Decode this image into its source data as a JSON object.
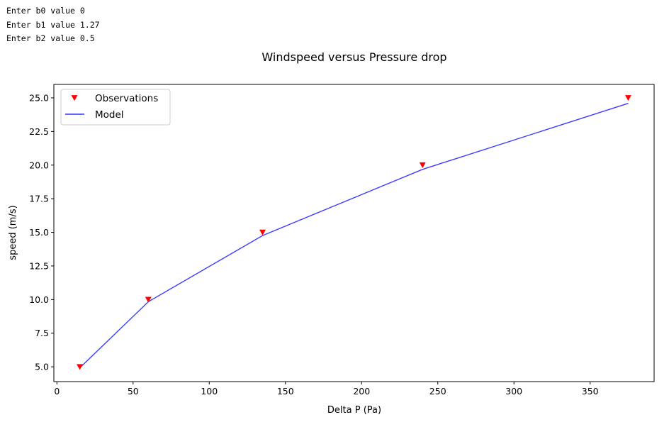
{
  "console": {
    "lines": [
      "Enter b0 value 0",
      "Enter b1 value 1.27",
      "Enter b2 value 0.5"
    ]
  },
  "colors": {
    "observations": "#ff0000",
    "model": "#3333ff",
    "axes": "#000000",
    "legend_border": "#cccccc"
  },
  "chart_data": {
    "type": "line",
    "title": "Windspeed versus Pressure drop",
    "xlabel": "Delta P (Pa)",
    "ylabel": "speed (m/s)",
    "xlim": [
      -2,
      392
    ],
    "ylim": [
      3.9,
      26
    ],
    "xticks": [
      0,
      50,
      100,
      150,
      200,
      250,
      300,
      350
    ],
    "yticks": [
      5.0,
      7.5,
      10.0,
      12.5,
      15.0,
      17.5,
      20.0,
      22.5,
      25.0
    ],
    "xtick_labels": [
      "0",
      "50",
      "100",
      "150",
      "200",
      "250",
      "300",
      "350"
    ],
    "ytick_labels": [
      "5.0",
      "7.5",
      "10.0",
      "12.5",
      "15.0",
      "17.5",
      "20.0",
      "22.5",
      "25.0"
    ],
    "grid": false,
    "legend_position": "upper-left",
    "series": [
      {
        "name": "Observations",
        "kind": "marker",
        "marker": "triangle-down",
        "color": "#ff0000",
        "x": [
          15,
          60,
          135,
          240,
          375
        ],
        "y": [
          5,
          10,
          15,
          20,
          25
        ]
      },
      {
        "name": "Model",
        "kind": "line",
        "color": "#3333ff",
        "x": [
          15,
          60,
          135,
          240,
          375
        ],
        "y": [
          4.92,
          9.84,
          14.76,
          19.68,
          24.59
        ]
      }
    ]
  }
}
